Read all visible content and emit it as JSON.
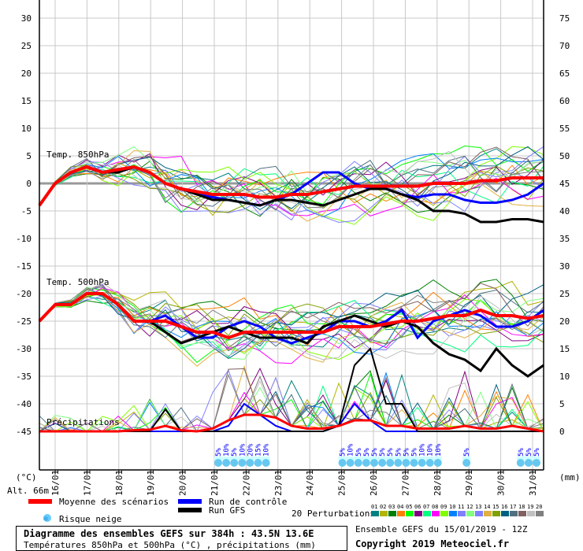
{
  "chart_data": {
    "type": "line",
    "title": "Diagramme des ensembles GEFS sur 384h : 43.5N 13.6E",
    "subtitle": "Températures 850hPa et 500hPa (°C) , précipitations (mm)",
    "run_info": "Ensemble GEFS du 15/01/2019 - 12Z",
    "copyright": "Copyright 2019 Meteociel.fr",
    "left_axis": {
      "label": "(°C)",
      "ticks": [
        30,
        25,
        20,
        15,
        10,
        5,
        0,
        -5,
        -10,
        -15,
        -20,
        -25,
        -30,
        -35,
        -40,
        -45
      ],
      "range": [
        -45,
        30
      ]
    },
    "right_axis": {
      "label": "(mm)",
      "ticks": [
        75,
        70,
        65,
        60,
        55,
        50,
        45,
        40,
        35,
        30,
        25,
        20,
        15,
        10,
        5,
        0
      ],
      "range": [
        0,
        75
      ]
    },
    "altitude": "Alt. 66m",
    "x_tick_labels": [
      "16/01",
      "17/01",
      "18/01",
      "19/01",
      "20/01",
      "21/01",
      "22/01",
      "23/01",
      "24/01",
      "25/01",
      "26/01",
      "27/01",
      "28/01",
      "29/01",
      "30/01",
      "31/01"
    ],
    "x_step_hours": 12,
    "panel_labels": {
      "t850": "Temp. 850hPa",
      "t500": "Temp. 500hPa",
      "precip": "Précipitations"
    },
    "series": [
      {
        "name": "Moyenne des scénarios",
        "color": "#ff0000",
        "t850": [
          -4,
          0,
          2,
          3,
          2,
          2.5,
          3,
          2,
          0,
          -1,
          -1.5,
          -2,
          -2,
          -2,
          -2.5,
          -2.5,
          -2,
          -2,
          -1.5,
          -1,
          -0.5,
          -0.5,
          -0.5,
          -0.5,
          -0.5,
          0,
          0,
          0,
          0.5,
          0.5,
          1,
          1,
          1
        ],
        "t500": [
          -25,
          -22,
          -22,
          -20,
          -20,
          -22,
          -25,
          -25,
          -25,
          -26,
          -27,
          -27,
          -28,
          -27,
          -27,
          -27,
          -27,
          -27,
          -27,
          -26,
          -26,
          -26,
          -25.5,
          -25,
          -25,
          -24.5,
          -24,
          -24,
          -23,
          -24,
          -24,
          -24.5,
          -24
        ],
        "precip": [
          0,
          0,
          0,
          0,
          0,
          0,
          0.2,
          0.3,
          1,
          0.2,
          0,
          0.5,
          2,
          3,
          3,
          2.5,
          1,
          0.5,
          0.5,
          1,
          2,
          2,
          1,
          1,
          0.5,
          0.5,
          0.5,
          1,
          0.5,
          0.5,
          1,
          0.5,
          0
        ]
      },
      {
        "name": "Run de contrôle",
        "color": "#0000ff",
        "t850": [
          -4,
          0,
          2,
          3,
          2,
          2,
          3,
          2,
          0,
          -1,
          -2,
          -2.5,
          -3,
          -3.5,
          -4,
          -3,
          -2,
          0,
          2,
          2,
          0,
          -1,
          -1,
          -2,
          -2.5,
          -2,
          -2,
          -3,
          -3.5,
          -3.5,
          -3,
          -2,
          0
        ],
        "t500": [
          -25,
          -22,
          -22,
          -20,
          -20,
          -22,
          -25,
          -25,
          -24,
          -26,
          -28,
          -28,
          -26,
          -25,
          -26,
          -28,
          -29,
          -28,
          -27,
          -25,
          -25,
          -26,
          -25,
          -23,
          -28,
          -25,
          -24,
          -23,
          -24,
          -26,
          -26,
          -25,
          -23
        ],
        "precip": [
          0,
          0,
          0,
          0,
          0,
          0,
          0,
          0,
          0,
          0,
          0,
          0,
          1,
          5,
          3,
          1,
          0,
          0,
          0,
          1,
          5,
          2,
          0,
          0,
          0,
          0,
          0,
          0,
          0,
          0,
          0,
          0,
          0
        ]
      },
      {
        "name": "Run GFS",
        "color": "#000000",
        "t850": [
          -4,
          0,
          2,
          3,
          2,
          2,
          3,
          2,
          0,
          -1,
          -2,
          -3,
          -3,
          -3.5,
          -4,
          -3,
          -3,
          -3.5,
          -4,
          -3,
          -2,
          -1,
          -1,
          -2,
          -3,
          -5,
          -5,
          -5.5,
          -7,
          -7,
          -6.5,
          -6.5,
          -7
        ],
        "t500": [
          -25,
          -22,
          -22,
          -20,
          -20,
          -22,
          -25,
          -25,
          -27,
          -29,
          -28,
          -27,
          -26,
          -27,
          -28,
          -28,
          -28,
          -29,
          -26,
          -25,
          -24,
          -25,
          -26,
          -25,
          -26,
          -29,
          -31,
          -32,
          -34,
          -30,
          -33,
          -35,
          -33
        ],
        "precip": [
          0,
          0,
          0,
          0,
          0,
          0,
          0,
          0,
          4,
          0,
          0,
          0,
          0,
          0,
          0,
          0,
          0,
          0,
          0,
          1,
          12,
          15,
          5,
          5,
          0,
          0,
          0,
          0,
          0,
          0,
          0,
          0,
          0
        ]
      }
    ],
    "perturbations": {
      "label": "20 Perturbations",
      "ids": [
        "01",
        "02",
        "03",
        "04",
        "05",
        "06",
        "07",
        "08",
        "09",
        "10",
        "11",
        "12",
        "13",
        "14",
        "15",
        "16",
        "17",
        "18",
        "19",
        "20"
      ],
      "colors": [
        "#008080",
        "#b4b400",
        "#008000",
        "#ff8000",
        "#00ff00",
        "#800080",
        "#00ff80",
        "#ff00ff",
        "#80ff00",
        "#0080ff",
        "#8080ff",
        "#80ff80",
        "#8080ff",
        "#e0b040",
        "#80a000",
        "#006080",
        "#507080",
        "#806060",
        "#c0c0c0",
        "#808080"
      ]
    },
    "snow_risk": {
      "label": "Risque neige",
      "groups": [
        {
          "start_day_index": 5.0,
          "values": [
            "5%",
            "10%",
            "5%",
            "10%",
            "20%",
            "15%",
            "10%"
          ]
        },
        {
          "start_day_index": 8.9,
          "values": [
            "5%",
            "10%",
            "5%",
            "5%",
            "5%",
            "5%",
            "5%",
            "5%",
            "5%",
            "5%",
            "10%",
            "10%",
            "10%"
          ]
        },
        {
          "start_day_index": 12.8,
          "values": [
            "5%"
          ]
        },
        {
          "start_day_index": 14.5,
          "values": [
            "5%",
            "5%",
            "5%"
          ]
        }
      ]
    }
  }
}
